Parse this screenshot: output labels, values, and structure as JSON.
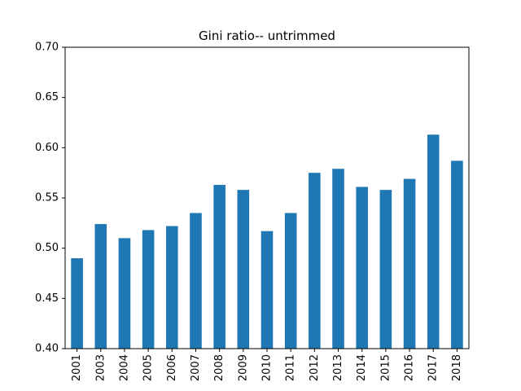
{
  "chart_data": {
    "type": "bar",
    "title": "Gini ratio-- untrimmed",
    "xlabel": "",
    "ylabel": "",
    "categories": [
      "2001",
      "2003",
      "2004",
      "2005",
      "2006",
      "2007",
      "2008",
      "2009",
      "2010",
      "2011",
      "2012",
      "2013",
      "2014",
      "2015",
      "2016",
      "2017",
      "2018"
    ],
    "values": [
      0.49,
      0.524,
      0.51,
      0.518,
      0.522,
      0.535,
      0.563,
      0.558,
      0.517,
      0.535,
      0.575,
      0.579,
      0.561,
      0.558,
      0.569,
      0.613,
      0.587
    ],
    "ylim": [
      0.4,
      0.7
    ],
    "yticks": [
      "0.40",
      "0.45",
      "0.50",
      "0.55",
      "0.60",
      "0.65",
      "0.70"
    ],
    "bar_color": "#1f77b4",
    "grid": false
  }
}
